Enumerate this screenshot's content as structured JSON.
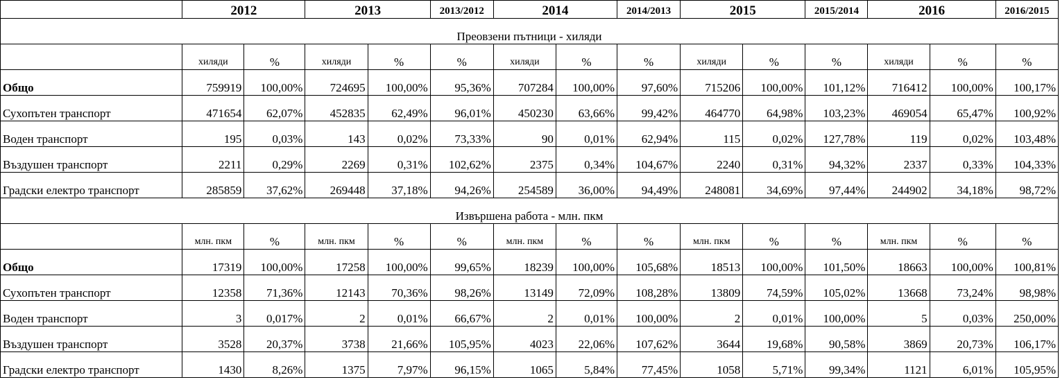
{
  "header": {
    "years": [
      "2012",
      "2013",
      "2013/2012",
      "2014",
      "2014/2013",
      "2015",
      "2015/2014",
      "2016",
      "2016/2015"
    ]
  },
  "sections": [
    {
      "title": "Преовзени пътници - хиляди",
      "units": [
        "хиляди",
        "%",
        "хиляди",
        "%",
        "%",
        "хиляди",
        "%",
        "%",
        "хиляди",
        "%",
        "%",
        "хиляди",
        "%",
        "%"
      ],
      "rows": [
        {
          "label": "Общо",
          "bold": true,
          "values": [
            "759919",
            "100,00%",
            "724695",
            "100,00%",
            "95,36%",
            "707284",
            "100,00%",
            "97,60%",
            "715206",
            "100,00%",
            "101,12%",
            "716412",
            "100,00%",
            "100,17%"
          ]
        },
        {
          "label": "Сухопътен транспорт",
          "values": [
            "471654",
            "62,07%",
            "452835",
            "62,49%",
            "96,01%",
            "450230",
            "63,66%",
            "99,42%",
            "464770",
            "64,98%",
            "103,23%",
            "469054",
            "65,47%",
            "100,92%"
          ]
        },
        {
          "label": "Воден транспорт",
          "values": [
            "195",
            "0,03%",
            "143",
            "0,02%",
            "73,33%",
            "90",
            "0,01%",
            "62,94%",
            "115",
            "0,02%",
            "127,78%",
            "119",
            "0,02%",
            "103,48%"
          ]
        },
        {
          "label": "Въздушен транспорт",
          "values": [
            "2211",
            "0,29%",
            "2269",
            "0,31%",
            "102,62%",
            "2375",
            "0,34%",
            "104,67%",
            "2240",
            "0,31%",
            "94,32%",
            "2337",
            "0,33%",
            "104,33%"
          ]
        },
        {
          "label": "Градски електро транспорт",
          "values": [
            "285859",
            "37,62%",
            "269448",
            "37,18%",
            "94,26%",
            "254589",
            "36,00%",
            "94,49%",
            "248081",
            "34,69%",
            "97,44%",
            "244902",
            "34,18%",
            "98,72%"
          ]
        }
      ]
    },
    {
      "title": "Извършена работа - млн. пкм",
      "units": [
        "млн. пкм",
        "%",
        "млн. пкм",
        "%",
        "%",
        "млн. пкм",
        "%",
        "%",
        "млн. пкм",
        "%",
        "%",
        "млн. пкм",
        "%",
        "%"
      ],
      "rows": [
        {
          "label": "Общо",
          "bold": true,
          "values": [
            "17319",
            "100,00%",
            "17258",
            "100,00%",
            "99,65%",
            "18239",
            "100,00%",
            "105,68%",
            "18513",
            "100,00%",
            "101,50%",
            "18663",
            "100,00%",
            "100,81%"
          ]
        },
        {
          "label": "Сухопътен транспорт",
          "values": [
            "12358",
            "71,36%",
            "12143",
            "70,36%",
            "98,26%",
            "13149",
            "72,09%",
            "108,28%",
            "13809",
            "74,59%",
            "105,02%",
            "13668",
            "73,24%",
            "98,98%"
          ]
        },
        {
          "label": "Воден транспорт",
          "values": [
            "3",
            "0,017%",
            "2",
            "0,01%",
            "66,67%",
            "2",
            "0,01%",
            "100,00%",
            "2",
            "0,01%",
            "100,00%",
            "5",
            "0,03%",
            "250,00%"
          ]
        },
        {
          "label": "Въздушен транспорт",
          "values": [
            "3528",
            "20,37%",
            "3738",
            "21,66%",
            "105,95%",
            "4023",
            "22,06%",
            "107,62%",
            "3644",
            "19,68%",
            "90,58%",
            "3869",
            "20,73%",
            "106,17%"
          ]
        },
        {
          "label": "Градски електро транспорт",
          "values": [
            "1430",
            "8,26%",
            "1375",
            "7,97%",
            "96,15%",
            "1065",
            "5,84%",
            "77,45%",
            "1058",
            "5,71%",
            "99,34%",
            "1121",
            "6,01%",
            "105,95%"
          ]
        }
      ]
    }
  ]
}
